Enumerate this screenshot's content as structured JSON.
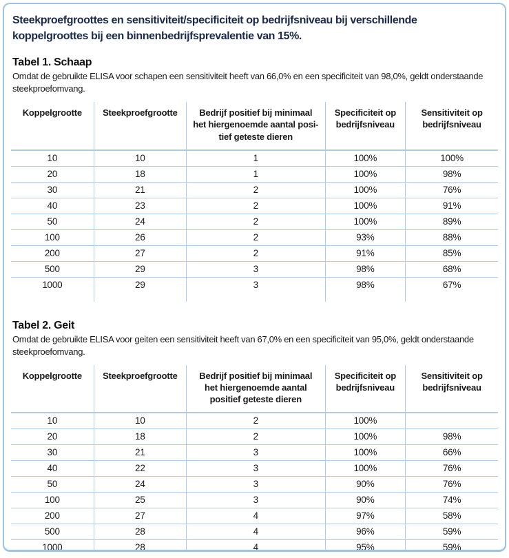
{
  "page": {
    "title": "Steekproefgroottes en sensitiviteit/specificiteit op bedrijfsniveau bij verschillende\nkoppelgroottes bij een binnenbedrijfsprevalentie van 15%."
  },
  "colors": {
    "frame_border": "#9cc2e5",
    "grid_lines": "#aecbe8",
    "title_text": "#1b2a4a",
    "body_text": "#1a1a1a"
  },
  "tables": [
    {
      "heading": "Tabel 1. Schaap",
      "description": "Omdat de gebruikte ELISA voor schapen een sensitiviteit heeft van 66,0% en een specificiteit van 98,0%, geldt onderstaande\nsteekproefomvang.",
      "columns": [
        "Koppelgrootte",
        "Steekproefgrootte",
        "Bedrijf positief bij minimaal\nhet hiergenoemde aantal posi-\ntief geteste dieren",
        "Specificiteit op\nbedrijfsniveau",
        "Sensitiviteit op\nbedrijfsniveau"
      ],
      "rows": [
        [
          "10",
          "10",
          "1",
          "100%",
          "100%"
        ],
        [
          "20",
          "18",
          "1",
          "100%",
          "98%"
        ],
        [
          "30",
          "21",
          "2",
          "100%",
          "76%"
        ],
        [
          "40",
          "23",
          "2",
          "100%",
          "91%"
        ],
        [
          "50",
          "24",
          "2",
          "100%",
          "89%"
        ],
        [
          "100",
          "26",
          "2",
          "93%",
          "88%"
        ],
        [
          "200",
          "27",
          "2",
          "91%",
          "85%"
        ],
        [
          "500",
          "29",
          "3",
          "98%",
          "68%"
        ],
        [
          "1000",
          "29",
          "3",
          "98%",
          "67%"
        ]
      ]
    },
    {
      "heading": "Tabel 2. Geit",
      "description": "Omdat de gebruikte ELISA voor geiten een sensitiviteit heeft van 67,0% en een specificiteit van 95,0%, geldt onderstaande\nsteekproefomvang.",
      "columns": [
        "Koppelgrootte",
        "Steekproefgrootte",
        "Bedrijf positief bij minimaal\nhet hiergenoemde aantal\npositief geteste dieren",
        "Specificiteit op\nbedrijfsniveau",
        "Sensitiviteit op\nbedrijfsniveau"
      ],
      "rows": [
        [
          "10",
          "10",
          "2",
          "100%",
          ""
        ],
        [
          "20",
          "18",
          "2",
          "100%",
          "98%"
        ],
        [
          "30",
          "21",
          "3",
          "100%",
          "66%"
        ],
        [
          "40",
          "22",
          "3",
          "100%",
          "76%"
        ],
        [
          "50",
          "24",
          "3",
          "90%",
          "76%"
        ],
        [
          "100",
          "25",
          "3",
          "90%",
          "74%"
        ],
        [
          "200",
          "27",
          "4",
          "97%",
          "58%"
        ],
        [
          "500",
          "28",
          "4",
          "96%",
          "59%"
        ],
        [
          "1000",
          "28",
          "4",
          "95%",
          "59%"
        ]
      ]
    }
  ]
}
